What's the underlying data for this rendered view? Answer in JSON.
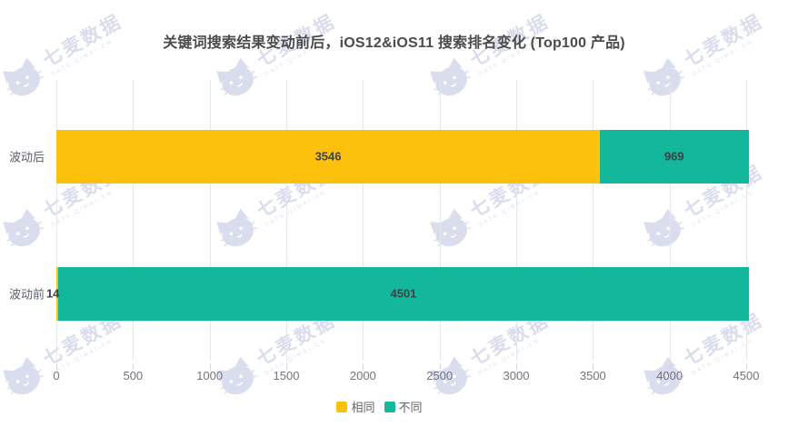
{
  "title": "关键词搜索结果变动前后，iOS12&iOS11 搜索排名变化 (Top100 产品)",
  "watermark": {
    "brand": "七麦数据",
    "subtext": "DATA.QIMAI.CN",
    "color": "#dadded"
  },
  "chart_data": {
    "type": "bar",
    "orientation": "horizontal",
    "stacked": true,
    "title": "关键词搜索结果变动前后，iOS12&iOS11 搜索排名变化 (Top100 产品)",
    "categories": [
      "波动后",
      "波动前"
    ],
    "series": [
      {
        "name": "相同",
        "color": "#FCC10D",
        "values": [
          3546,
          14
        ]
      },
      {
        "name": "不同",
        "color": "#13B79B",
        "values": [
          969,
          4501
        ]
      }
    ],
    "xlim": [
      0,
      4500
    ],
    "xticks": [
      0,
      500,
      1000,
      1500,
      2000,
      2500,
      3000,
      3500,
      4000,
      4500
    ],
    "xlabel": "",
    "ylabel": "",
    "grid": true,
    "value_labels": true,
    "legend_position": "bottom"
  },
  "colors": {
    "title_text": "#4b4b4b",
    "value_label_text": "#3d4247",
    "axis_text": "#70757d",
    "gridline": "#e4e7ee"
  }
}
